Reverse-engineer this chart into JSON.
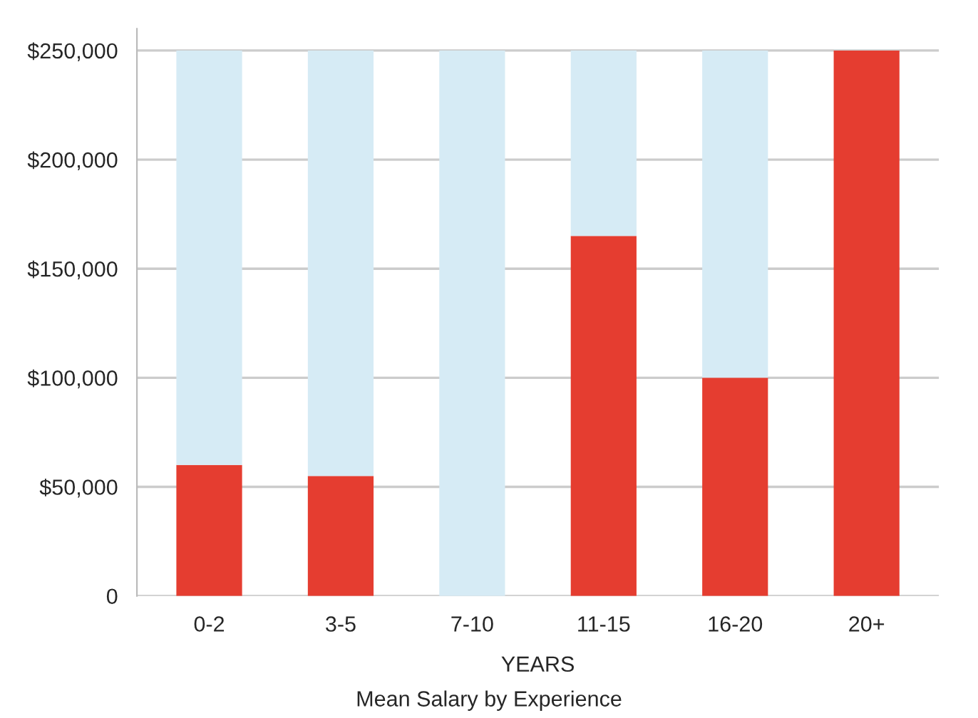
{
  "chart_data": {
    "type": "bar",
    "title": "Mean Salary by Experience",
    "xlabel": "YEARS",
    "categories": [
      "0-2",
      "3-5",
      "7-10",
      "11-15",
      "16-20",
      "20+"
    ],
    "stacked": true,
    "series": [
      {
        "color": "#e53d30",
        "values": [
          60000,
          55000,
          0,
          165000,
          100000,
          250000
        ]
      },
      {
        "color": "#d6ebf5",
        "values": [
          190000,
          195000,
          250000,
          85000,
          150000,
          0
        ]
      }
    ],
    "ylim": [
      0,
      260000
    ],
    "yticks": [
      {
        "value": 0,
        "label": "0"
      },
      {
        "value": 50000,
        "label": "$50,000"
      },
      {
        "value": 100000,
        "label": "$100,000"
      },
      {
        "value": 150000,
        "label": "$150,000"
      },
      {
        "value": 200000,
        "label": "$200,000"
      },
      {
        "value": 250000,
        "label": "$250,000"
      }
    ],
    "grid": "y",
    "legend": false
  }
}
